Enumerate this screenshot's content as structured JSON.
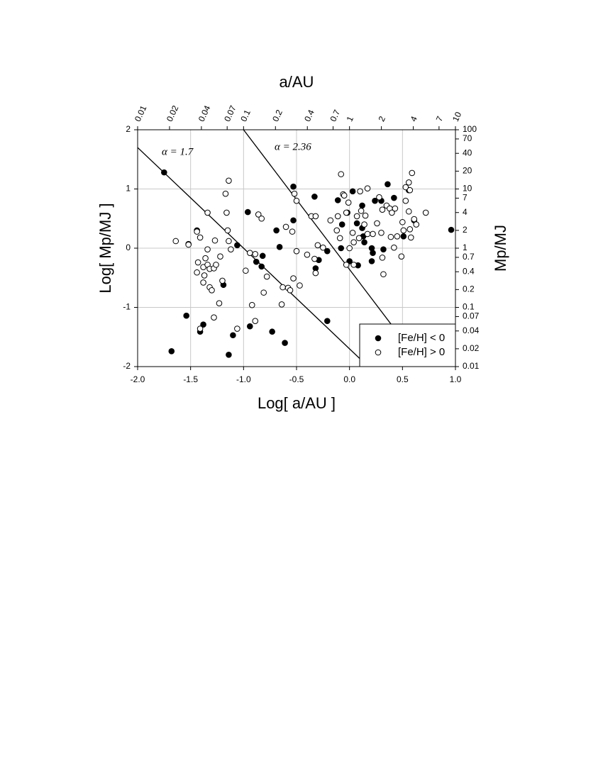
{
  "chart_data": {
    "type": "scatter",
    "title": "a/AU",
    "x_label": "Log[ a/AU ]",
    "y_label": "Log[ Mp/MJ ]",
    "y2_label": "Mp/MJ",
    "xlim": [
      -2.0,
      1.0
    ],
    "ylim": [
      -2,
      2
    ],
    "xticks": [
      {
        "value": -2.0,
        "label": "-2.0"
      },
      {
        "value": -1.5,
        "label": "-1.5"
      },
      {
        "value": -1.0,
        "label": "-1.0"
      },
      {
        "value": -0.5,
        "label": "-0.5"
      },
      {
        "value": 0.0,
        "label": "0.0"
      },
      {
        "value": 0.5,
        "label": "0.5"
      },
      {
        "value": 1.0,
        "label": "1.0"
      }
    ],
    "yticks": [
      -2,
      -1,
      0,
      1,
      2
    ],
    "x2lim": [
      0.01,
      10
    ],
    "x2scale": "log",
    "x2ticks": [
      0.01,
      0.02,
      0.04,
      0.07,
      0.1,
      0.2,
      0.4,
      0.7,
      1,
      2,
      4,
      7,
      10
    ],
    "y2lim": [
      0.01,
      100
    ],
    "y2scale": "log",
    "y2ticks": [
      0.01,
      0.02,
      0.04,
      0.07,
      0.1,
      0.2,
      0.4,
      0.7,
      1,
      2,
      4,
      7,
      10,
      20,
      40,
      70,
      100
    ],
    "grid": true,
    "legend_position": "lower right",
    "fit_lines": [
      {
        "label": "α = 1.7",
        "x": [
          -2.0,
          0.1
        ],
        "y": [
          1.7,
          -1.87
        ]
      },
      {
        "label": "α = 2.36",
        "x": [
          -1.0,
          0.45
        ],
        "y": [
          2.0,
          -1.42
        ]
      }
    ],
    "series": [
      {
        "name": "[Fe/H] < 0",
        "color": "#000000",
        "x": [
          -1.75,
          -1.54,
          -1.68,
          -1.44,
          -1.41,
          -1.38,
          -1.52,
          -1.19,
          -1.1,
          -1.14,
          -1.06,
          -0.96,
          -0.94,
          -0.88,
          -0.83,
          -0.82,
          -0.73,
          -0.69,
          -0.66,
          -0.61,
          -0.53,
          -0.53,
          -0.33,
          -0.32,
          -0.29,
          -0.21,
          -0.21,
          -0.11,
          -0.08,
          0.0,
          0.03,
          0.08,
          0.07,
          0.12,
          0.13,
          0.14,
          0.12,
          0.21,
          0.22,
          0.21,
          0.24,
          0.3,
          0.32,
          0.36,
          0.42,
          0.51,
          0.56,
          0.61,
          0.96,
          -0.07,
          -0.02
        ],
        "y": [
          1.28,
          -1.14,
          -1.74,
          0.3,
          -1.41,
          -1.29,
          0.07,
          -0.62,
          -1.47,
          -1.8,
          0.05,
          0.61,
          -1.32,
          -0.23,
          -0.31,
          -0.13,
          -1.41,
          0.3,
          0.02,
          -1.6,
          1.04,
          0.47,
          0.87,
          -0.34,
          -0.2,
          -1.23,
          -0.05,
          0.81,
          0.0,
          -0.22,
          0.96,
          -0.29,
          0.42,
          0.72,
          0.2,
          0.1,
          0.34,
          0.0,
          -0.08,
          -0.22,
          0.8,
          0.8,
          -0.02,
          1.08,
          0.85,
          0.2,
          0.98,
          0.47,
          0.31,
          0.4,
          0.6
        ]
      },
      {
        "name": "[Fe/H] > 0",
        "color": "#ffffff",
        "x": [
          -1.64,
          -1.52,
          -1.44,
          -1.41,
          -1.43,
          -1.44,
          -1.38,
          -1.36,
          -1.34,
          -1.37,
          -1.38,
          -1.34,
          -1.34,
          -1.32,
          -1.28,
          -1.32,
          -1.3,
          -1.27,
          -1.28,
          -1.26,
          -1.23,
          -1.22,
          -1.2,
          -1.17,
          -1.14,
          -1.16,
          -1.15,
          -1.14,
          -1.12,
          -1.41,
          -1.06,
          -0.98,
          -0.94,
          -0.92,
          -0.89,
          -0.89,
          -0.86,
          -0.83,
          -0.81,
          -0.78,
          -0.64,
          -0.63,
          -0.6,
          -0.58,
          -0.56,
          -0.54,
          -0.53,
          -0.52,
          -0.5,
          -0.5,
          -0.47,
          -0.4,
          -0.36,
          -0.33,
          -0.32,
          -0.32,
          -0.3,
          -0.25,
          -0.18,
          -0.11,
          -0.08,
          -0.06,
          -0.05,
          -0.12,
          -0.09,
          -0.03,
          -0.01,
          -0.03,
          0.0,
          0.03,
          0.04,
          0.04,
          0.07,
          0.09,
          0.1,
          0.11,
          0.14,
          0.15,
          0.17,
          0.17,
          0.22,
          0.26,
          0.28,
          0.3,
          0.31,
          0.32,
          0.31,
          0.35,
          0.38,
          0.39,
          0.4,
          0.42,
          0.43,
          0.45,
          0.49,
          0.5,
          0.51,
          0.53,
          0.53,
          0.56,
          0.56,
          0.57,
          0.57,
          0.58,
          0.59,
          0.61,
          0.63,
          0.72
        ],
        "y": [
          0.12,
          0.06,
          0.28,
          0.18,
          -0.24,
          -0.41,
          -0.32,
          -0.17,
          -0.02,
          -0.46,
          -0.58,
          0.6,
          -0.28,
          -0.35,
          -0.34,
          -0.66,
          -0.71,
          0.13,
          -1.17,
          -0.28,
          -0.93,
          -0.14,
          -0.55,
          0.92,
          1.14,
          0.6,
          0.3,
          0.12,
          -0.02,
          -1.36,
          -1.36,
          -0.38,
          -0.08,
          -0.96,
          -0.1,
          -1.23,
          0.57,
          0.5,
          -0.75,
          -0.48,
          -0.95,
          -0.66,
          0.36,
          -0.67,
          -0.71,
          0.28,
          -0.51,
          0.92,
          0.8,
          -0.05,
          -0.63,
          -0.11,
          0.54,
          -0.18,
          -0.42,
          0.54,
          0.05,
          0.01,
          0.47,
          0.54,
          1.25,
          0.91,
          0.89,
          0.3,
          0.17,
          0.6,
          0.77,
          -0.28,
          0.0,
          0.26,
          0.1,
          -0.28,
          0.54,
          0.17,
          0.96,
          0.63,
          0.4,
          0.55,
          1.01,
          0.24,
          0.24,
          0.42,
          0.86,
          0.26,
          0.65,
          -0.44,
          -0.16,
          0.72,
          0.67,
          0.19,
          0.6,
          0.01,
          0.67,
          0.2,
          -0.14,
          0.44,
          0.3,
          1.03,
          0.8,
          0.62,
          1.11,
          0.32,
          0.98,
          0.18,
          1.27,
          0.49,
          0.4,
          0.6
        ]
      }
    ]
  }
}
